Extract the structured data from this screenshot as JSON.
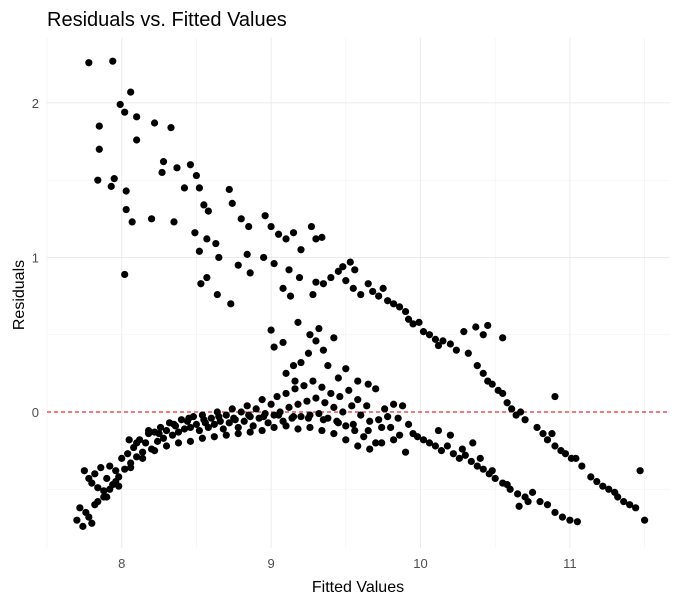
{
  "chart_data": {
    "type": "scatter",
    "title": "Residuals vs. Fitted Values",
    "xlabel": "Fitted Values",
    "ylabel": "Residuals",
    "xlim": [
      7.5,
      11.67
    ],
    "ylim": [
      -0.88,
      2.42
    ],
    "x_ticks": [
      8,
      9,
      10,
      11
    ],
    "y_ticks": [
      0,
      1,
      2
    ],
    "grid": true,
    "reference_line": {
      "y": 0,
      "style": "dashed",
      "color": "#cc0000"
    },
    "point_color": "#000000",
    "points": [
      [
        7.78,
        2.26
      ],
      [
        7.94,
        2.27
      ],
      [
        8.06,
        2.07
      ],
      [
        7.99,
        1.99
      ],
      [
        7.85,
        1.85
      ],
      [
        8.02,
        1.94
      ],
      [
        8.1,
        1.91
      ],
      [
        7.85,
        1.7
      ],
      [
        8.1,
        1.76
      ],
      [
        8.22,
        1.87
      ],
      [
        8.33,
        1.84
      ],
      [
        7.84,
        1.5
      ],
      [
        7.93,
        1.46
      ],
      [
        7.95,
        1.51
      ],
      [
        8.03,
        1.43
      ],
      [
        8.27,
        1.55
      ],
      [
        8.28,
        1.62
      ],
      [
        8.37,
        1.58
      ],
      [
        8.42,
        1.45
      ],
      [
        8.46,
        1.6
      ],
      [
        8.5,
        1.53
      ],
      [
        8.52,
        1.45
      ],
      [
        8.55,
        1.34
      ],
      [
        8.58,
        1.3
      ],
      [
        8.03,
        1.31
      ],
      [
        8.07,
        1.23
      ],
      [
        8.2,
        1.25
      ],
      [
        8.35,
        1.23
      ],
      [
        8.49,
        1.16
      ],
      [
        8.57,
        1.12
      ],
      [
        8.63,
        1.09
      ],
      [
        8.72,
        1.44
      ],
      [
        8.74,
        1.35
      ],
      [
        8.8,
        1.25
      ],
      [
        8.85,
        1.2
      ],
      [
        8.96,
        1.27
      ],
      [
        9.0,
        1.2
      ],
      [
        9.05,
        1.15
      ],
      [
        9.1,
        1.12
      ],
      [
        9.15,
        1.16
      ],
      [
        9.2,
        1.05
      ],
      [
        9.27,
        1.2
      ],
      [
        9.3,
        1.12
      ],
      [
        9.34,
        1.13
      ],
      [
        8.52,
        1.04
      ],
      [
        8.65,
        1.0
      ],
      [
        8.78,
        0.95
      ],
      [
        8.84,
        1.02
      ],
      [
        8.95,
        1.0
      ],
      [
        9.02,
        0.96
      ],
      [
        9.12,
        0.92
      ],
      [
        9.19,
        0.87
      ],
      [
        8.02,
        0.89
      ],
      [
        8.53,
        0.83
      ],
      [
        8.57,
        0.87
      ],
      [
        8.64,
        0.76
      ],
      [
        8.73,
        0.7
      ],
      [
        8.86,
        0.9
      ],
      [
        9.08,
        0.8
      ],
      [
        9.13,
        0.75
      ],
      [
        9.28,
        0.76
      ],
      [
        9.3,
        0.84
      ],
      [
        9.35,
        0.83
      ],
      [
        9.4,
        0.87
      ],
      [
        9.45,
        0.91
      ],
      [
        9.48,
        0.94
      ],
      [
        9.53,
        0.97
      ],
      [
        9.56,
        0.92
      ],
      [
        9.5,
        0.85
      ],
      [
        9.55,
        0.8
      ],
      [
        9.6,
        0.76
      ],
      [
        9.65,
        0.83
      ],
      [
        9.68,
        0.78
      ],
      [
        9.72,
        0.75
      ],
      [
        9.75,
        0.8
      ],
      [
        9.78,
        0.72
      ],
      [
        9.82,
        0.7
      ],
      [
        9.86,
        0.68
      ],
      [
        9.9,
        0.65
      ],
      [
        9.92,
        0.6
      ],
      [
        9.95,
        0.57
      ],
      [
        9.99,
        0.58
      ],
      [
        10.02,
        0.52
      ],
      [
        10.06,
        0.5
      ],
      [
        10.1,
        0.47
      ],
      [
        10.12,
        0.43
      ],
      [
        10.15,
        0.46
      ],
      [
        10.2,
        0.44
      ],
      [
        10.24,
        0.4
      ],
      [
        10.29,
        0.52
      ],
      [
        10.37,
        0.55
      ],
      [
        10.42,
        0.5
      ],
      [
        10.45,
        0.56
      ],
      [
        10.32,
        0.38
      ],
      [
        10.38,
        0.3
      ],
      [
        10.42,
        0.25
      ],
      [
        10.45,
        0.2
      ],
      [
        10.48,
        0.18
      ],
      [
        10.52,
        0.14
      ],
      [
        10.55,
        0.12
      ],
      [
        10.58,
        0.06
      ],
      [
        10.61,
        0.02
      ],
      [
        10.64,
        -0.02
      ],
      [
        10.67,
        0.0
      ],
      [
        10.7,
        -0.05
      ],
      [
        10.55,
        0.48
      ],
      [
        10.78,
        -0.1
      ],
      [
        10.82,
        -0.14
      ],
      [
        10.85,
        -0.18
      ],
      [
        10.9,
        -0.22
      ],
      [
        10.94,
        -0.25
      ],
      [
        10.97,
        -0.27
      ],
      [
        11.01,
        -0.3
      ],
      [
        11.04,
        -0.3
      ],
      [
        11.08,
        -0.35
      ],
      [
        10.88,
        -0.14
      ],
      [
        10.9,
        0.1
      ],
      [
        11.14,
        -0.42
      ],
      [
        11.18,
        -0.45
      ],
      [
        11.22,
        -0.48
      ],
      [
        11.26,
        -0.5
      ],
      [
        11.3,
        -0.52
      ],
      [
        11.32,
        -0.55
      ],
      [
        11.36,
        -0.58
      ],
      [
        11.4,
        -0.6
      ],
      [
        11.44,
        -0.62
      ],
      [
        11.47,
        -0.38
      ],
      [
        11.5,
        -0.7
      ],
      [
        9.18,
        0.58
      ],
      [
        9.26,
        0.5
      ],
      [
        9.3,
        0.46
      ],
      [
        9.35,
        0.4
      ],
      [
        9.32,
        0.54
      ],
      [
        9.25,
        0.38
      ],
      [
        9.2,
        0.32
      ],
      [
        9.15,
        0.3
      ],
      [
        9.1,
        0.25
      ],
      [
        9.42,
        0.48
      ],
      [
        9.38,
        0.3
      ],
      [
        9.45,
        0.22
      ],
      [
        9.5,
        0.28
      ],
      [
        9.58,
        0.2
      ],
      [
        9.65,
        0.18
      ],
      [
        9.7,
        0.15
      ],
      [
        9.08,
        0.45
      ],
      [
        9.02,
        0.42
      ],
      [
        9.0,
        0.53
      ],
      [
        9.16,
        0.2
      ],
      [
        7.75,
        -0.38
      ],
      [
        7.78,
        -0.43
      ],
      [
        7.8,
        -0.46
      ],
      [
        7.82,
        -0.4
      ],
      [
        7.84,
        -0.49
      ],
      [
        7.86,
        -0.36
      ],
      [
        7.88,
        -0.51
      ],
      [
        7.9,
        -0.43
      ],
      [
        7.92,
        -0.35
      ],
      [
        7.94,
        -0.47
      ],
      [
        7.96,
        -0.38
      ],
      [
        7.98,
        -0.42
      ],
      [
        8.0,
        -0.3
      ],
      [
        8.02,
        -0.37
      ],
      [
        8.04,
        -0.27
      ],
      [
        8.06,
        -0.33
      ],
      [
        8.08,
        -0.23
      ],
      [
        8.1,
        -0.29
      ],
      [
        8.12,
        -0.18
      ],
      [
        8.14,
        -0.26
      ],
      [
        8.16,
        -0.2
      ],
      [
        8.18,
        -0.14
      ],
      [
        8.2,
        -0.24
      ],
      [
        8.22,
        -0.13
      ],
      [
        8.24,
        -0.19
      ],
      [
        8.26,
        -0.1
      ],
      [
        8.28,
        -0.17
      ],
      [
        8.3,
        -0.12
      ],
      [
        8.32,
        -0.07
      ],
      [
        8.34,
        -0.15
      ],
      [
        8.36,
        -0.09
      ],
      [
        8.38,
        -0.13
      ],
      [
        8.4,
        -0.05
      ],
      [
        8.42,
        -0.11
      ],
      [
        8.44,
        -0.06
      ],
      [
        8.46,
        -0.1
      ],
      [
        8.48,
        -0.03
      ],
      [
        8.5,
        -0.08
      ],
      [
        8.52,
        -0.12
      ],
      [
        8.54,
        -0.02
      ],
      [
        8.56,
        -0.07
      ],
      [
        8.58,
        -0.1
      ],
      [
        8.6,
        -0.04
      ],
      [
        8.62,
        -0.08
      ],
      [
        8.64,
        0.0
      ],
      [
        8.66,
        -0.06
      ],
      [
        8.68,
        -0.11
      ],
      [
        8.7,
        -0.02
      ],
      [
        8.72,
        -0.07
      ],
      [
        8.74,
        0.02
      ],
      [
        8.76,
        -0.05
      ],
      [
        8.78,
        -0.1
      ],
      [
        8.8,
        0.0
      ],
      [
        8.82,
        -0.06
      ],
      [
        8.84,
        0.04
      ],
      [
        8.86,
        -0.03
      ],
      [
        8.88,
        -0.09
      ],
      [
        8.9,
        0.02
      ],
      [
        8.92,
        -0.04
      ],
      [
        8.94,
        0.08
      ],
      [
        8.96,
        -0.01
      ],
      [
        8.98,
        -0.07
      ],
      [
        9.0,
        0.05
      ],
      [
        9.02,
        -0.02
      ],
      [
        9.04,
        0.1
      ],
      [
        9.06,
        0.0
      ],
      [
        9.08,
        -0.06
      ],
      [
        9.1,
        0.12
      ],
      [
        9.12,
        0.03
      ],
      [
        9.14,
        -0.04
      ],
      [
        9.16,
        0.15
      ],
      [
        9.18,
        0.05
      ],
      [
        9.2,
        -0.03
      ],
      [
        9.22,
        0.17
      ],
      [
        9.24,
        0.07
      ],
      [
        9.26,
        -0.02
      ],
      [
        9.28,
        0.2
      ],
      [
        9.3,
        0.09
      ],
      [
        9.32,
        -0.01
      ],
      [
        9.34,
        0.16
      ],
      [
        9.36,
        0.06
      ],
      [
        9.38,
        -0.04
      ],
      [
        9.4,
        0.12
      ],
      [
        9.42,
        0.03
      ],
      [
        9.44,
        -0.06
      ],
      [
        9.46,
        0.1
      ],
      [
        9.48,
        0.0
      ],
      [
        9.5,
        -0.09
      ],
      [
        9.52,
        0.14
      ],
      [
        9.54,
        0.04
      ],
      [
        9.56,
        -0.12
      ],
      [
        9.58,
        0.08
      ],
      [
        9.6,
        -0.02
      ],
      [
        9.62,
        -0.16
      ],
      [
        9.64,
        0.04
      ],
      [
        9.66,
        -0.06
      ],
      [
        9.7,
        -0.2
      ],
      [
        9.74,
        -0.1
      ],
      [
        9.78,
        -0.03
      ],
      [
        9.82,
        0.05
      ],
      [
        9.86,
        -0.15
      ],
      [
        7.72,
        -0.62
      ],
      [
        7.76,
        -0.65
      ],
      [
        7.8,
        -0.72
      ],
      [
        7.84,
        -0.58
      ],
      [
        7.88,
        -0.55
      ],
      [
        7.92,
        -0.5
      ],
      [
        7.96,
        -0.45
      ],
      [
        7.7,
        -0.7
      ],
      [
        7.74,
        -0.74
      ],
      [
        7.78,
        -0.68
      ],
      [
        8.05,
        -0.18
      ],
      [
        8.1,
        -0.2
      ],
      [
        8.18,
        -0.12
      ],
      [
        8.25,
        -0.14
      ],
      [
        8.35,
        -0.08
      ],
      [
        8.45,
        -0.04
      ],
      [
        8.55,
        -0.05
      ],
      [
        8.65,
        -0.03
      ],
      [
        8.75,
        -0.04
      ],
      [
        8.85,
        -0.02
      ],
      [
        8.95,
        -0.03
      ],
      [
        9.05,
        -0.02
      ],
      [
        9.15,
        -0.03
      ],
      [
        9.25,
        -0.04
      ],
      [
        9.35,
        -0.05
      ],
      [
        9.45,
        -0.07
      ],
      [
        9.55,
        -0.08
      ],
      [
        9.65,
        -0.12
      ],
      [
        9.72,
        -0.05
      ],
      [
        9.76,
        0.02
      ],
      [
        9.8,
        -0.1
      ],
      [
        9.85,
        -0.04
      ],
      [
        9.88,
        0.04
      ],
      [
        9.92,
        -0.08
      ],
      [
        9.95,
        -0.14
      ],
      [
        9.98,
        -0.16
      ],
      [
        10.02,
        -0.18
      ],
      [
        10.06,
        -0.2
      ],
      [
        10.1,
        -0.22
      ],
      [
        10.14,
        -0.25
      ],
      [
        10.18,
        -0.22
      ],
      [
        10.22,
        -0.27
      ],
      [
        10.26,
        -0.3
      ],
      [
        10.3,
        -0.28
      ],
      [
        10.34,
        -0.32
      ],
      [
        10.38,
        -0.35
      ],
      [
        10.42,
        -0.37
      ],
      [
        10.46,
        -0.4
      ],
      [
        10.5,
        -0.43
      ],
      [
        10.55,
        -0.46
      ],
      [
        10.6,
        -0.5
      ],
      [
        10.65,
        -0.53
      ],
      [
        10.7,
        -0.55
      ],
      [
        10.75,
        -0.52
      ],
      [
        10.8,
        -0.58
      ],
      [
        10.85,
        -0.6
      ],
      [
        10.9,
        -0.65
      ],
      [
        10.95,
        -0.68
      ],
      [
        11.0,
        -0.7
      ],
      [
        11.05,
        -0.71
      ],
      [
        10.66,
        -0.61
      ],
      [
        10.72,
        -0.58
      ],
      [
        10.58,
        -0.47
      ],
      [
        10.48,
        -0.38
      ],
      [
        10.4,
        -0.3
      ],
      [
        10.35,
        -0.2
      ],
      [
        10.28,
        -0.24
      ],
      [
        10.2,
        -0.15
      ],
      [
        10.12,
        -0.12
      ],
      [
        9.9,
        -0.26
      ],
      [
        9.82,
        -0.18
      ],
      [
        9.74,
        -0.2
      ],
      [
        9.66,
        -0.24
      ],
      [
        9.58,
        -0.22
      ],
      [
        9.5,
        -0.18
      ],
      [
        9.42,
        -0.14
      ],
      [
        9.34,
        -0.12
      ],
      [
        9.26,
        -0.1
      ],
      [
        9.18,
        -0.11
      ],
      [
        9.1,
        -0.09
      ],
      [
        9.02,
        -0.1
      ],
      [
        8.94,
        -0.12
      ],
      [
        8.86,
        -0.13
      ],
      [
        8.78,
        -0.14
      ],
      [
        8.7,
        -0.15
      ],
      [
        8.62,
        -0.16
      ],
      [
        8.54,
        -0.17
      ],
      [
        8.46,
        -0.19
      ],
      [
        8.38,
        -0.2
      ],
      [
        8.3,
        -0.22
      ],
      [
        8.22,
        -0.25
      ],
      [
        8.14,
        -0.3
      ],
      [
        8.06,
        -0.36
      ],
      [
        7.98,
        -0.48
      ],
      [
        7.9,
        -0.55
      ],
      [
        7.82,
        -0.6
      ]
    ]
  }
}
